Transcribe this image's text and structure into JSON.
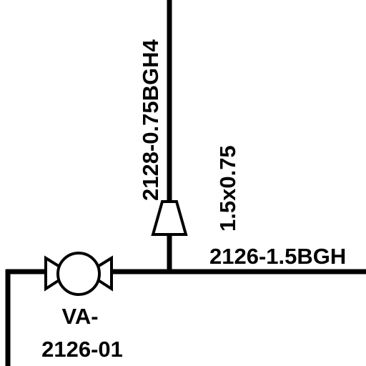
{
  "diagram": {
    "line_vertical_label": "2128-0.75BGH4",
    "reducer_label": "1.5x0.75",
    "line_horizontal_label": "2126-1.5BGH",
    "valve": {
      "tag_line1": "VA-",
      "tag_line2": "2126-01"
    }
  },
  "colors": {
    "ink": "#000000",
    "paper": "#ffffff"
  }
}
